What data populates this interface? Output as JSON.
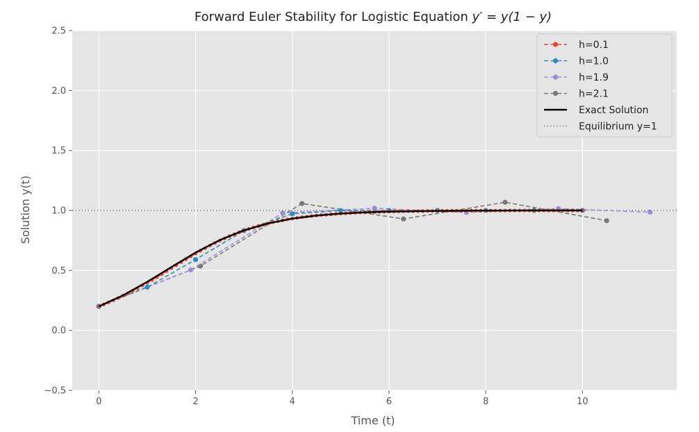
{
  "chart_data": {
    "type": "line",
    "title_prefix": "Forward Euler Stability for Logistic Equation ",
    "title_math": "y′ = y(1 − y)",
    "xlabel": "Time (t)",
    "ylabel": "Solution y(t)",
    "xlim": [
      -0.55,
      11.95
    ],
    "ylim": [
      -0.5,
      2.5
    ],
    "xticks": [
      0,
      2,
      4,
      6,
      8,
      10
    ],
    "yticks": [
      -0.5,
      0.0,
      0.5,
      1.0,
      1.5,
      2.0,
      2.5
    ],
    "xtick_labels": [
      "0",
      "2",
      "4",
      "6",
      "8",
      "10"
    ],
    "ytick_labels": [
      "−0.5",
      "0.0",
      "0.5",
      "1.0",
      "1.5",
      "2.0",
      "2.5"
    ],
    "grid": true,
    "legend_position": "top-right",
    "equilibrium": {
      "name": "Equilibrium y=1",
      "y": 1.0,
      "color": "#777777"
    },
    "exact": {
      "name": "Exact Solution",
      "color": "#000000",
      "x": [
        0,
        0.5,
        1,
        1.5,
        2,
        2.5,
        3,
        3.5,
        4,
        4.5,
        5,
        5.5,
        6,
        7,
        8,
        9,
        10
      ],
      "y": [
        0.2,
        0.292,
        0.405,
        0.528,
        0.649,
        0.753,
        0.834,
        0.892,
        0.932,
        0.957,
        0.974,
        0.984,
        0.99,
        0.996,
        0.999,
        1.0,
        1.0
      ]
    },
    "series": [
      {
        "name": "h=0.1",
        "color": "#E24A33",
        "x": [
          0,
          0.1,
          0.2,
          0.3,
          0.4,
          0.5,
          0.6,
          0.7,
          0.8,
          0.9,
          1.0,
          1.1,
          1.2,
          1.3,
          1.4,
          1.5,
          1.6,
          1.7,
          1.8,
          1.9,
          2.0,
          2.1,
          2.2,
          2.3,
          2.4,
          2.5,
          2.6,
          2.7,
          2.8,
          2.9,
          3.0,
          3.1,
          3.2,
          3.3,
          3.4,
          3.5,
          3.6,
          3.7,
          3.8,
          3.9,
          4.0,
          4.1,
          4.2,
          4.3,
          4.4,
          4.5,
          4.6,
          4.7,
          4.8,
          4.9,
          5.0,
          5.1,
          5.2,
          5.3,
          5.4,
          5.5,
          5.6,
          5.7,
          5.8,
          5.9,
          6.0,
          6.1,
          6.2,
          6.3,
          6.4,
          6.5,
          6.6,
          6.7,
          6.8,
          6.9,
          7.0,
          7.1,
          7.2,
          7.3,
          7.4,
          7.5,
          7.6,
          7.7,
          7.8,
          7.9,
          8.0,
          8.1,
          8.2,
          8.3,
          8.4,
          8.5,
          8.6,
          8.7,
          8.8,
          8.9,
          9.0,
          9.1,
          9.2,
          9.3,
          9.4,
          9.5,
          9.6,
          9.7,
          9.8,
          9.9,
          10.0
        ],
        "y": [
          0.2,
          0.216,
          0.233,
          0.251,
          0.269,
          0.289,
          0.309,
          0.33,
          0.351,
          0.374,
          0.397,
          0.42,
          0.444,
          0.469,
          0.494,
          0.519,
          0.544,
          0.569,
          0.593,
          0.617,
          0.641,
          0.664,
          0.686,
          0.708,
          0.728,
          0.748,
          0.767,
          0.785,
          0.801,
          0.817,
          0.832,
          0.846,
          0.859,
          0.871,
          0.882,
          0.892,
          0.902,
          0.91,
          0.918,
          0.926,
          0.932,
          0.938,
          0.944,
          0.949,
          0.954,
          0.958,
          0.962,
          0.965,
          0.968,
          0.971,
          0.974,
          0.976,
          0.979,
          0.981,
          0.983,
          0.984,
          0.986,
          0.987,
          0.988,
          0.989,
          0.99,
          0.991,
          0.992,
          0.993,
          0.994,
          0.994,
          0.995,
          0.995,
          0.996,
          0.996,
          0.997,
          0.997,
          0.997,
          0.998,
          0.998,
          0.998,
          0.998,
          0.999,
          0.999,
          0.999,
          0.999,
          0.999,
          0.999,
          0.999,
          0.999,
          1.0,
          1.0,
          1.0,
          1.0,
          1.0,
          1.0,
          1.0,
          1.0,
          1.0,
          1.0,
          1.0,
          1.0,
          1.0,
          1.0,
          1.0,
          1.0
        ]
      },
      {
        "name": "h=1.0",
        "color": "#348ABD",
        "x": [
          0,
          1,
          2,
          3,
          4,
          5,
          6,
          7,
          8,
          9,
          10
        ],
        "y": [
          0.2,
          0.36,
          0.59,
          0.832,
          0.972,
          0.999,
          1.0,
          1.0,
          1.0,
          1.0,
          1.0
        ]
      },
      {
        "name": "h=1.9",
        "color": "#988ED5",
        "x": [
          0,
          1.9,
          3.8,
          5.7,
          7.6,
          9.5,
          11.4
        ],
        "y": [
          0.2,
          0.504,
          0.979,
          1.018,
          0.983,
          1.015,
          0.986
        ]
      },
      {
        "name": "h=2.1",
        "color": "#777777",
        "x": [
          0,
          2.1,
          4.2,
          6.3,
          8.4,
          10.5
        ],
        "y": [
          0.2,
          0.536,
          1.058,
          0.929,
          1.068,
          0.915
        ]
      }
    ]
  }
}
